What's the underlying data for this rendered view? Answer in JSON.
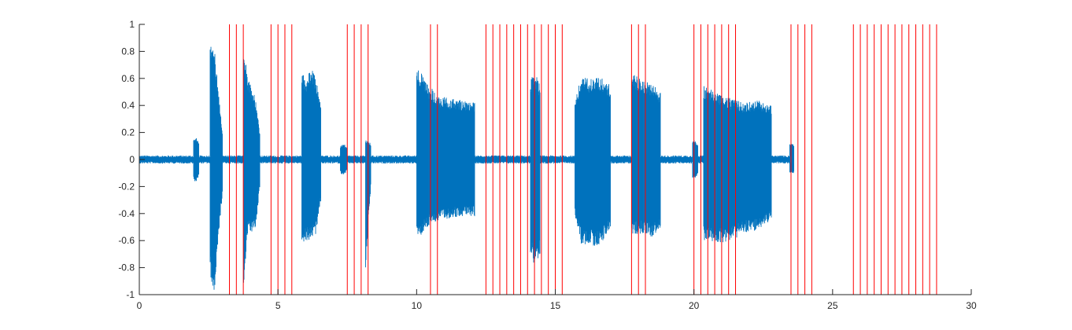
{
  "chart_data": {
    "type": "line",
    "title": "",
    "xlabel": "",
    "ylabel": "",
    "xlim": [
      0,
      30
    ],
    "ylim": [
      -1,
      1
    ],
    "grid": false,
    "x_ticks": [
      0,
      5,
      10,
      15,
      20,
      25,
      30
    ],
    "x_tick_labels": [
      "0",
      "5",
      "10",
      "15",
      "20",
      "25",
      "30"
    ],
    "y_ticks": [
      1,
      0.8,
      0.6,
      0.4,
      0.2,
      0,
      -0.2,
      -0.4,
      -0.6,
      -0.8,
      -1
    ],
    "y_tick_labels": [
      "1",
      "0.8",
      "0.6",
      "0.4",
      "0.2",
      "0",
      "-0.2",
      "-0.4",
      "-0.6",
      "-0.8",
      "-1"
    ],
    "colors": {
      "waveform": "#0072BD",
      "markers": "#FF0000",
      "axis": "#262626"
    },
    "waveform": {
      "x_range": [
        0,
        23.6
      ],
      "noise_amplitude": 0.03,
      "bursts": [
        {
          "start": 1.95,
          "end": 2.15,
          "pos": [
            0.15,
            0.17,
            0.12
          ],
          "neg": [
            -0.15,
            -0.17,
            -0.12
          ]
        },
        {
          "start": 2.55,
          "end": 3.0,
          "pos": [
            0.93,
            0.85,
            0.5,
            0.2
          ],
          "neg": [
            -0.85,
            -1.0,
            -0.6,
            -0.25
          ]
        },
        {
          "start": 3.75,
          "end": 4.35,
          "pos": [
            0.9,
            0.6,
            0.55,
            0.45,
            0.2
          ],
          "neg": [
            -1.0,
            -0.55,
            -0.55,
            -0.5,
            -0.2
          ]
        },
        {
          "start": 5.85,
          "end": 6.55,
          "pos": [
            0.65,
            0.6,
            0.68,
            0.6,
            0.4
          ],
          "neg": [
            -0.65,
            -0.6,
            -0.6,
            -0.55,
            -0.3
          ]
        },
        {
          "start": 7.25,
          "end": 7.5,
          "pos": [
            0.1,
            0.12,
            0.08
          ],
          "neg": [
            -0.1,
            -0.12,
            -0.08
          ]
        },
        {
          "start": 8.15,
          "end": 8.35,
          "pos": [
            0.15,
            0.12
          ],
          "neg": [
            -0.85,
            -0.2
          ]
        },
        {
          "start": 10.0,
          "end": 12.1,
          "pos": [
            0.7,
            0.55,
            0.47,
            0.45,
            0.44,
            0.42
          ],
          "neg": [
            -0.6,
            -0.5,
            -0.45,
            -0.43,
            -0.42,
            -0.42
          ]
        },
        {
          "start": 14.1,
          "end": 14.45,
          "pos": [
            0.6,
            0.65,
            0.55
          ],
          "neg": [
            -0.7,
            -0.8,
            -0.7
          ]
        },
        {
          "start": 15.7,
          "end": 17.0,
          "pos": [
            0.45,
            0.62,
            0.6,
            0.62,
            0.6,
            0.55
          ],
          "neg": [
            -0.4,
            -0.65,
            -0.62,
            -0.65,
            -0.6,
            -0.5
          ]
        },
        {
          "start": 17.75,
          "end": 18.8,
          "pos": [
            0.65,
            0.6,
            0.58,
            0.55,
            0.5
          ],
          "neg": [
            -0.55,
            -0.55,
            -0.55,
            -0.58,
            -0.5
          ]
        },
        {
          "start": 19.95,
          "end": 20.15,
          "pos": [
            0.15,
            0.12
          ],
          "neg": [
            -0.15,
            -0.12
          ]
        },
        {
          "start": 20.35,
          "end": 22.8,
          "pos": [
            0.55,
            0.5,
            0.45,
            0.42,
            0.44,
            0.4
          ],
          "neg": [
            -0.6,
            -0.62,
            -0.6,
            -0.55,
            -0.52,
            -0.45
          ]
        },
        {
          "start": 23.45,
          "end": 23.6,
          "pos": [
            0.12
          ],
          "neg": [
            -0.1
          ]
        }
      ]
    },
    "markers_x": [
      3.25,
      3.5,
      3.75,
      4.75,
      5.0,
      5.25,
      5.5,
      7.5,
      7.75,
      8.0,
      8.25,
      10.5,
      10.75,
      12.5,
      12.75,
      13.0,
      13.25,
      13.5,
      13.75,
      14.0,
      14.25,
      14.5,
      14.75,
      15.0,
      15.25,
      17.75,
      18.0,
      18.25,
      20.0,
      20.25,
      20.5,
      20.75,
      21.0,
      21.25,
      21.5,
      23.5,
      23.75,
      24.0,
      24.25,
      25.75,
      26.0,
      26.25,
      26.5,
      26.75,
      27.0,
      27.25,
      27.5,
      27.75,
      28.0,
      28.25,
      28.5,
      28.75
    ]
  }
}
